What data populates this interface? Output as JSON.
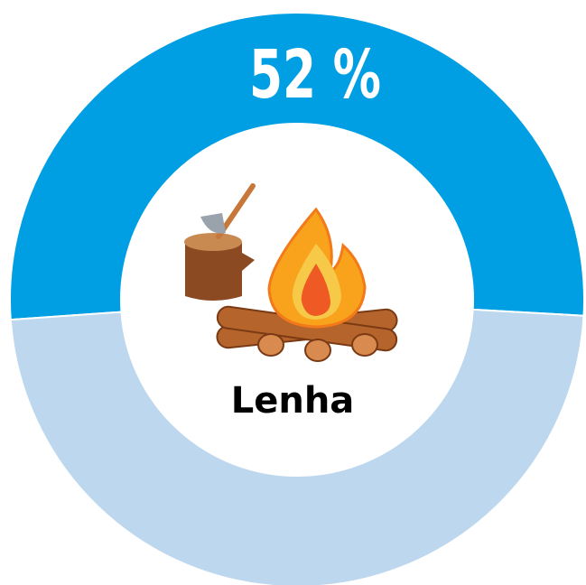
{
  "chart_data": {
    "type": "donut",
    "categories": [
      "Lenha",
      null
    ],
    "values": [
      52,
      48
    ],
    "value_labels": [
      "52 %",
      null
    ],
    "colors": [
      "#009fe3",
      "#bdd7ee"
    ]
  }
}
